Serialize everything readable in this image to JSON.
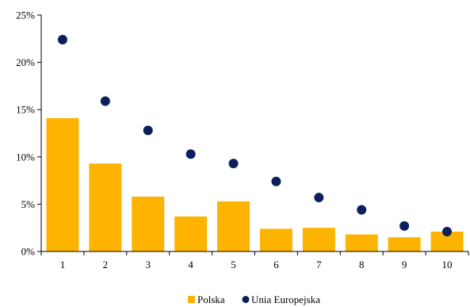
{
  "chart_data": {
    "type": "bar",
    "categories": [
      "1",
      "2",
      "3",
      "4",
      "5",
      "6",
      "7",
      "8",
      "9",
      "10"
    ],
    "series": [
      {
        "name": "Polska",
        "type": "bar",
        "color": "#FDB300",
        "values": [
          14.1,
          9.3,
          5.8,
          3.7,
          5.3,
          2.4,
          2.5,
          1.8,
          1.5,
          2.1
        ]
      },
      {
        "name": "Unia Europejska",
        "type": "scatter",
        "color": "#0B1F5C",
        "values": [
          22.4,
          15.9,
          12.8,
          10.3,
          9.3,
          7.4,
          5.7,
          4.4,
          2.7,
          2.1
        ]
      }
    ],
    "ylim": [
      0,
      25
    ],
    "yticks": [
      0,
      5,
      10,
      15,
      20,
      25
    ],
    "ytick_labels": [
      "0%",
      "5%",
      "10%",
      "15%",
      "20%",
      "25%"
    ],
    "title": "",
    "xlabel": "",
    "ylabel": "",
    "grid": false,
    "legend_position": "bottom-center"
  }
}
